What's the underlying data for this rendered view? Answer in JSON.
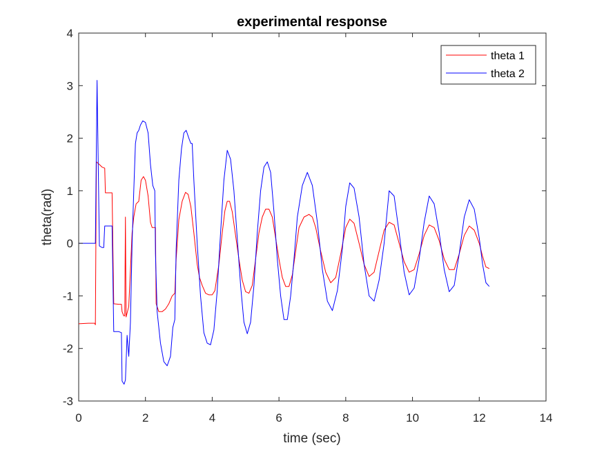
{
  "chart_data": {
    "type": "line",
    "title": "experimental response",
    "xlabel": "time (sec)",
    "ylabel": "theta(rad)",
    "xlim": [
      0,
      14
    ],
    "ylim": [
      -3,
      4
    ],
    "xticks": [
      "0",
      "2",
      "4",
      "6",
      "8",
      "10",
      "12",
      "14"
    ],
    "yticks": [
      "-3",
      "-2",
      "-1",
      "0",
      "1",
      "2",
      "3",
      "4"
    ],
    "grid": false,
    "legend_position": "top-right",
    "series": [
      {
        "name": "theta 1",
        "color": "#ff0000",
        "points": [
          [
            0,
            -1.53
          ],
          [
            0.3,
            -1.52
          ],
          [
            0.48,
            -1.52
          ],
          [
            0.5,
            -1.55
          ],
          [
            0.53,
            1.55
          ],
          [
            0.62,
            1.5
          ],
          [
            0.7,
            1.45
          ],
          [
            0.78,
            1.43
          ],
          [
            0.8,
            0.96
          ],
          [
            0.95,
            0.96
          ],
          [
            1.0,
            0.96
          ],
          [
            1.05,
            -1.15
          ],
          [
            1.2,
            -1.16
          ],
          [
            1.28,
            -1.16
          ],
          [
            1.3,
            -1.3
          ],
          [
            1.35,
            -1.38
          ],
          [
            1.38,
            -1.38
          ],
          [
            1.4,
            0.5
          ],
          [
            1.42,
            -1.4
          ],
          [
            1.5,
            -1.2
          ],
          [
            1.55,
            -0.5
          ],
          [
            1.6,
            0.2
          ],
          [
            1.65,
            0.5
          ],
          [
            1.72,
            0.75
          ],
          [
            1.8,
            0.8
          ],
          [
            1.87,
            1.2
          ],
          [
            1.94,
            1.27
          ],
          [
            2.0,
            1.2
          ],
          [
            2.08,
            0.9
          ],
          [
            2.15,
            0.4
          ],
          [
            2.2,
            0.3
          ],
          [
            2.3,
            0.3
          ],
          [
            2.32,
            -1.15
          ],
          [
            2.4,
            -1.3
          ],
          [
            2.5,
            -1.3
          ],
          [
            2.6,
            -1.25
          ],
          [
            2.7,
            -1.15
          ],
          [
            2.8,
            -1.0
          ],
          [
            2.88,
            -0.95
          ],
          [
            2.92,
            -0.3
          ],
          [
            3.0,
            0.45
          ],
          [
            3.1,
            0.8
          ],
          [
            3.2,
            0.97
          ],
          [
            3.28,
            0.93
          ],
          [
            3.36,
            0.7
          ],
          [
            3.45,
            0.2
          ],
          [
            3.55,
            -0.4
          ],
          [
            3.62,
            -0.65
          ],
          [
            3.7,
            -0.8
          ],
          [
            3.8,
            -0.95
          ],
          [
            3.9,
            -0.98
          ],
          [
            4.0,
            -0.98
          ],
          [
            4.08,
            -0.9
          ],
          [
            4.2,
            -0.4
          ],
          [
            4.3,
            0.2
          ],
          [
            4.38,
            0.62
          ],
          [
            4.45,
            0.8
          ],
          [
            4.52,
            0.8
          ],
          [
            4.6,
            0.6
          ],
          [
            4.7,
            0.15
          ],
          [
            4.8,
            -0.3
          ],
          [
            4.9,
            -0.7
          ],
          [
            5.0,
            -0.92
          ],
          [
            5.1,
            -0.95
          ],
          [
            5.2,
            -0.8
          ],
          [
            5.3,
            -0.3
          ],
          [
            5.4,
            0.2
          ],
          [
            5.5,
            0.5
          ],
          [
            5.6,
            0.65
          ],
          [
            5.7,
            0.65
          ],
          [
            5.8,
            0.5
          ],
          [
            5.9,
            0.1
          ],
          [
            6.0,
            -0.3
          ],
          [
            6.1,
            -0.65
          ],
          [
            6.2,
            -0.82
          ],
          [
            6.3,
            -0.82
          ],
          [
            6.4,
            -0.6
          ],
          [
            6.5,
            -0.15
          ],
          [
            6.6,
            0.3
          ],
          [
            6.75,
            0.5
          ],
          [
            6.9,
            0.55
          ],
          [
            7.0,
            0.5
          ],
          [
            7.1,
            0.3
          ],
          [
            7.25,
            -0.15
          ],
          [
            7.4,
            -0.55
          ],
          [
            7.55,
            -0.75
          ],
          [
            7.7,
            -0.65
          ],
          [
            7.85,
            -0.2
          ],
          [
            8.0,
            0.3
          ],
          [
            8.12,
            0.46
          ],
          [
            8.25,
            0.38
          ],
          [
            8.4,
            0.0
          ],
          [
            8.55,
            -0.4
          ],
          [
            8.7,
            -0.63
          ],
          [
            8.85,
            -0.55
          ],
          [
            9.0,
            -0.15
          ],
          [
            9.15,
            0.25
          ],
          [
            9.3,
            0.4
          ],
          [
            9.45,
            0.35
          ],
          [
            9.6,
            0.0
          ],
          [
            9.75,
            -0.35
          ],
          [
            9.9,
            -0.55
          ],
          [
            10.05,
            -0.5
          ],
          [
            10.2,
            -0.2
          ],
          [
            10.35,
            0.15
          ],
          [
            10.5,
            0.35
          ],
          [
            10.65,
            0.3
          ],
          [
            10.8,
            0.05
          ],
          [
            10.95,
            -0.3
          ],
          [
            11.1,
            -0.5
          ],
          [
            11.25,
            -0.5
          ],
          [
            11.4,
            -0.2
          ],
          [
            11.55,
            0.15
          ],
          [
            11.7,
            0.33
          ],
          [
            11.85,
            0.25
          ],
          [
            12.0,
            0.0
          ],
          [
            12.1,
            -0.25
          ],
          [
            12.2,
            -0.45
          ],
          [
            12.3,
            -0.48
          ]
        ]
      },
      {
        "name": "theta 2",
        "color": "#0000ff",
        "points": [
          [
            0,
            0.0
          ],
          [
            0.45,
            0.0
          ],
          [
            0.5,
            0.0
          ],
          [
            0.55,
            3.1
          ],
          [
            0.62,
            -0.05
          ],
          [
            0.7,
            -0.08
          ],
          [
            0.75,
            -0.08
          ],
          [
            0.78,
            0.33
          ],
          [
            0.95,
            0.33
          ],
          [
            1.0,
            0.33
          ],
          [
            1.05,
            -1.68
          ],
          [
            1.2,
            -1.68
          ],
          [
            1.28,
            -1.7
          ],
          [
            1.3,
            -2.62
          ],
          [
            1.36,
            -2.68
          ],
          [
            1.4,
            -2.6
          ],
          [
            1.45,
            -1.75
          ],
          [
            1.5,
            -2.15
          ],
          [
            1.55,
            -1.5
          ],
          [
            1.6,
            0.0
          ],
          [
            1.65,
            1.0
          ],
          [
            1.7,
            1.9
          ],
          [
            1.75,
            2.1
          ],
          [
            1.8,
            2.15
          ],
          [
            1.85,
            2.25
          ],
          [
            1.92,
            2.33
          ],
          [
            2.0,
            2.3
          ],
          [
            2.08,
            2.1
          ],
          [
            2.15,
            1.5
          ],
          [
            2.22,
            1.1
          ],
          [
            2.28,
            1.0
          ],
          [
            2.3,
            -0.2
          ],
          [
            2.35,
            -1.3
          ],
          [
            2.45,
            -1.9
          ],
          [
            2.55,
            -2.25
          ],
          [
            2.65,
            -2.33
          ],
          [
            2.75,
            -2.15
          ],
          [
            2.82,
            -1.6
          ],
          [
            2.88,
            -1.45
          ],
          [
            2.92,
            -0.1
          ],
          [
            3.0,
            1.2
          ],
          [
            3.08,
            1.8
          ],
          [
            3.15,
            2.1
          ],
          [
            3.22,
            2.15
          ],
          [
            3.3,
            2.0
          ],
          [
            3.36,
            1.9
          ],
          [
            3.4,
            1.9
          ],
          [
            3.45,
            1.2
          ],
          [
            3.55,
            0.0
          ],
          [
            3.65,
            -1.0
          ],
          [
            3.75,
            -1.7
          ],
          [
            3.85,
            -1.9
          ],
          [
            3.95,
            -1.93
          ],
          [
            4.05,
            -1.65
          ],
          [
            4.15,
            -0.9
          ],
          [
            4.25,
            0.2
          ],
          [
            4.35,
            1.2
          ],
          [
            4.45,
            1.77
          ],
          [
            4.55,
            1.6
          ],
          [
            4.65,
            1.0
          ],
          [
            4.75,
            0.1
          ],
          [
            4.85,
            -0.8
          ],
          [
            4.95,
            -1.5
          ],
          [
            5.05,
            -1.72
          ],
          [
            5.15,
            -1.5
          ],
          [
            5.25,
            -0.8
          ],
          [
            5.35,
            0.2
          ],
          [
            5.45,
            1.0
          ],
          [
            5.55,
            1.45
          ],
          [
            5.65,
            1.55
          ],
          [
            5.75,
            1.35
          ],
          [
            5.85,
            0.6
          ],
          [
            5.95,
            -0.3
          ],
          [
            6.05,
            -1.0
          ],
          [
            6.15,
            -1.45
          ],
          [
            6.25,
            -1.45
          ],
          [
            6.35,
            -1.0
          ],
          [
            6.45,
            -0.3
          ],
          [
            6.55,
            0.5
          ],
          [
            6.7,
            1.1
          ],
          [
            6.85,
            1.35
          ],
          [
            7.0,
            1.1
          ],
          [
            7.15,
            0.4
          ],
          [
            7.3,
            -0.5
          ],
          [
            7.45,
            -1.1
          ],
          [
            7.6,
            -1.28
          ],
          [
            7.75,
            -0.9
          ],
          [
            7.9,
            -0.1
          ],
          [
            8.0,
            0.7
          ],
          [
            8.12,
            1.15
          ],
          [
            8.25,
            1.05
          ],
          [
            8.4,
            0.5
          ],
          [
            8.55,
            -0.4
          ],
          [
            8.7,
            -1.0
          ],
          [
            8.85,
            -1.1
          ],
          [
            9.0,
            -0.7
          ],
          [
            9.15,
            0.0
          ],
          [
            9.3,
            1.0
          ],
          [
            9.45,
            0.9
          ],
          [
            9.6,
            0.2
          ],
          [
            9.75,
            -0.55
          ],
          [
            9.9,
            -0.98
          ],
          [
            10.05,
            -0.85
          ],
          [
            10.2,
            -0.3
          ],
          [
            10.35,
            0.4
          ],
          [
            10.5,
            0.9
          ],
          [
            10.65,
            0.75
          ],
          [
            10.8,
            0.2
          ],
          [
            10.95,
            -0.5
          ],
          [
            11.1,
            -0.92
          ],
          [
            11.25,
            -0.8
          ],
          [
            11.4,
            -0.2
          ],
          [
            11.55,
            0.5
          ],
          [
            11.7,
            0.83
          ],
          [
            11.85,
            0.65
          ],
          [
            12.0,
            0.1
          ],
          [
            12.1,
            -0.4
          ],
          [
            12.2,
            -0.75
          ],
          [
            12.3,
            -0.82
          ]
        ]
      }
    ]
  }
}
